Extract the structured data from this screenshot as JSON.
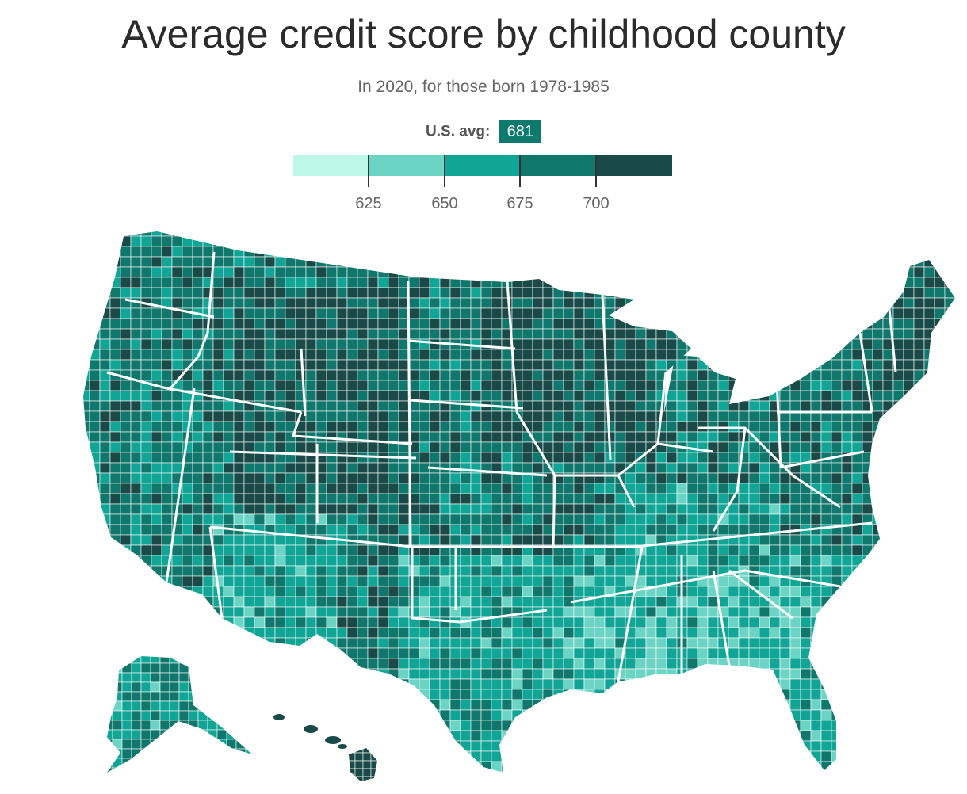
{
  "title": "Average credit score by childhood county",
  "subtitle": "In 2020, for those born 1978-1985",
  "average": {
    "label": "U.S. avg:",
    "value": "681",
    "color": "#0e7a6e"
  },
  "legend": {
    "bins": [
      {
        "range": "< 625",
        "color": "#bdf7e6"
      },
      {
        "range": "625–650",
        "color": "#6cd4c4"
      },
      {
        "range": "650–675",
        "color": "#11a596"
      },
      {
        "range": "675–700",
        "color": "#10776c"
      },
      {
        "range": "> 700",
        "color": "#1a4a48"
      }
    ],
    "ticks": [
      "625",
      "650",
      "675",
      "700"
    ]
  }
}
